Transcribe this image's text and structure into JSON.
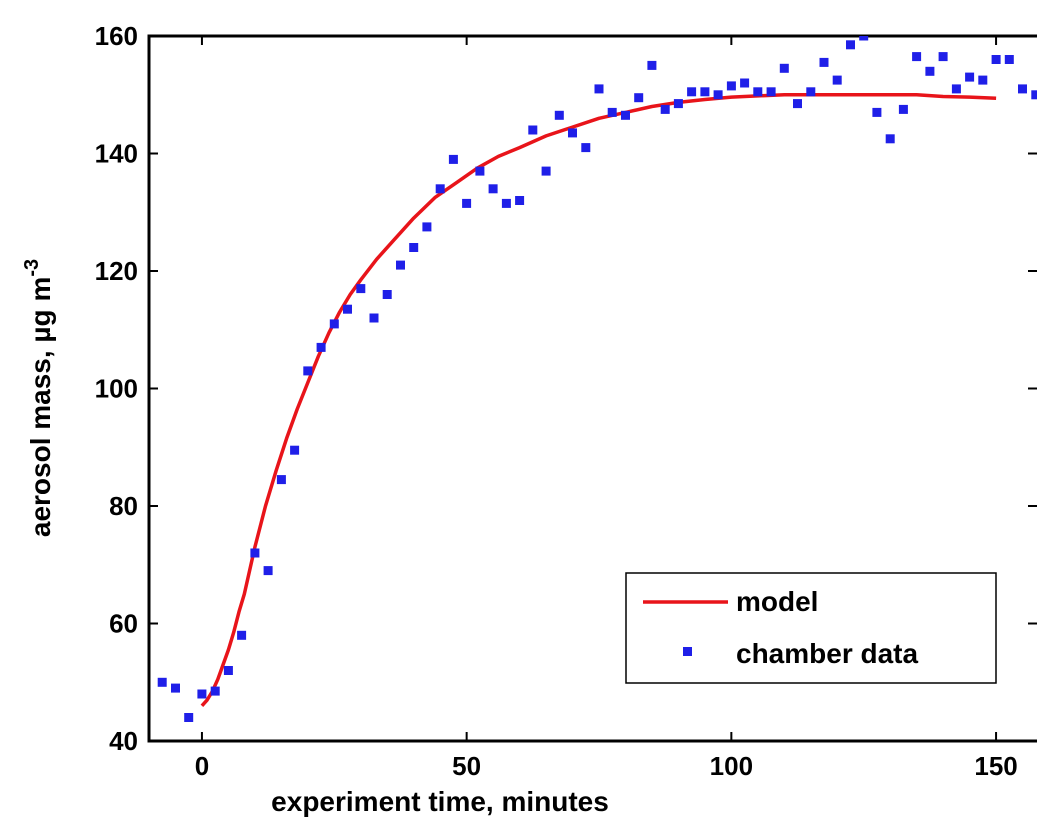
{
  "chart_data": {
    "type": "line",
    "xlabel": "experiment time, minutes",
    "ylabel": "aerosol mass, µg m",
    "ylabel_superscript": "-3",
    "xlim": [
      -10,
      160
    ],
    "ylim": [
      40,
      160
    ],
    "xticks": [
      0,
      50,
      100,
      150
    ],
    "yticks": [
      40,
      60,
      80,
      100,
      120,
      140,
      160
    ],
    "grid": false,
    "legend_position": "bottom-right",
    "series": [
      {
        "name": "model",
        "kind": "line",
        "color": "#e8141a",
        "x": [
          0,
          1,
          2,
          3,
          4,
          5,
          6,
          7,
          8,
          9,
          10,
          12,
          14,
          16,
          18,
          20,
          22,
          24,
          26,
          28,
          30,
          33,
          36,
          40,
          44,
          48,
          52,
          56,
          60,
          65,
          70,
          75,
          80,
          85,
          90,
          95,
          100,
          105,
          110,
          115,
          120,
          125,
          130,
          135,
          140,
          145,
          150
        ],
        "y": [
          46,
          47,
          48.5,
          50.5,
          53,
          55.5,
          58.5,
          62,
          65,
          69,
          73,
          80,
          86,
          91.5,
          96.5,
          101,
          105.5,
          109.5,
          113,
          116,
          118.5,
          122,
          125,
          129,
          132.5,
          135,
          137.5,
          139.5,
          141,
          143,
          144.5,
          146,
          147,
          148,
          148.7,
          149.2,
          149.6,
          149.8,
          150,
          150,
          150,
          150,
          150,
          150,
          149.7,
          149.6,
          149.4
        ]
      },
      {
        "name": "chamber data",
        "kind": "scatter",
        "color": "#1f1fe8",
        "x": [
          -7.5,
          -5,
          -2.5,
          0,
          2.5,
          5,
          7.5,
          10,
          12.5,
          15,
          17.5,
          20,
          22.5,
          25,
          27.5,
          30,
          32.5,
          35,
          37.5,
          40,
          42.5,
          45,
          47.5,
          50,
          52.5,
          55,
          57.5,
          60,
          62.5,
          65,
          67.5,
          70,
          72.5,
          75,
          77.5,
          80,
          82.5,
          85,
          87.5,
          90,
          92.5,
          95,
          97.5,
          100,
          102.5,
          105,
          107.5,
          110,
          112.5,
          115,
          117.5,
          120,
          122.5,
          125,
          127.5,
          130,
          132.5,
          135,
          137.5,
          140,
          142.5,
          145,
          147.5,
          150,
          152.5,
          155,
          157.5
        ],
        "y": [
          50,
          49,
          44,
          48,
          48.5,
          52,
          58,
          72,
          69,
          84.5,
          89.5,
          103,
          107,
          111,
          113.5,
          117,
          112,
          116,
          121,
          124,
          127.5,
          134,
          139,
          131.5,
          137,
          134,
          131.5,
          132,
          144,
          137,
          146.5,
          143.5,
          141,
          151,
          147,
          146.5,
          149.5,
          155,
          147.5,
          148.5,
          150.5,
          150.5,
          150,
          151.5,
          152,
          150.5,
          150.5,
          154.5,
          148.5,
          150.5,
          155.5,
          152.5,
          158.5,
          160,
          147,
          142.5,
          147.5,
          156.5,
          154,
          156.5,
          151,
          153,
          152.5,
          156,
          156,
          151,
          150
        ]
      }
    ]
  }
}
